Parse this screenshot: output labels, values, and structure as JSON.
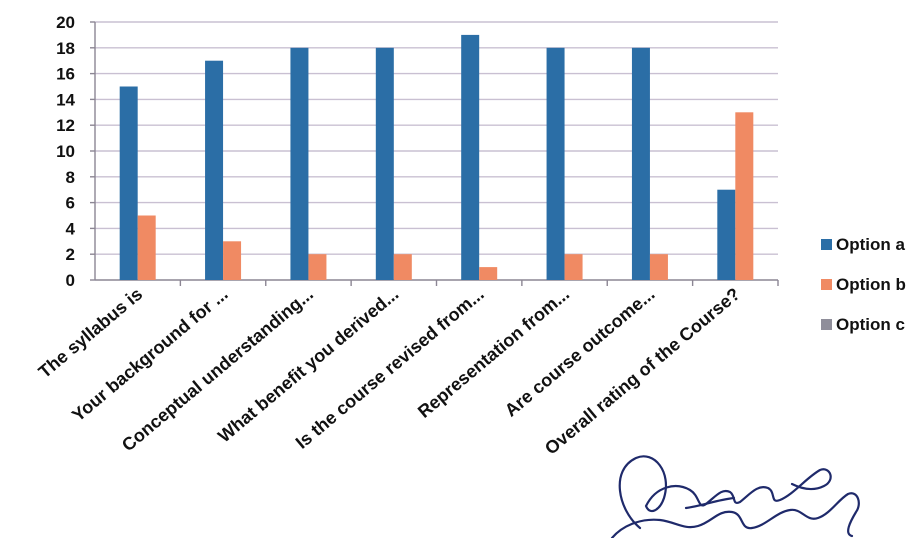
{
  "chart_data": {
    "type": "bar",
    "title": "",
    "xlabel": "",
    "ylabel": "",
    "ylim": [
      0,
      20
    ],
    "yticks": [
      0,
      2,
      4,
      6,
      8,
      10,
      12,
      14,
      16,
      18,
      20
    ],
    "grid": true,
    "legend_position": "right",
    "categories": [
      "The syllabus is",
      "Your background for ...",
      "Conceptual  understanding...",
      "What benefit you derived...",
      "Is the course revised from...",
      "Representation from...",
      "Are course outcome...",
      "Overall rating of the Course?"
    ],
    "series": [
      {
        "name": "Option a",
        "color": "#2b6ea6",
        "values": [
          15,
          17,
          18,
          18,
          19,
          18,
          18,
          7
        ]
      },
      {
        "name": "Option b",
        "color": "#f08a63",
        "values": [
          5,
          3,
          2,
          2,
          1,
          2,
          2,
          13
        ]
      },
      {
        "name": "Option c",
        "color": "#8f8e9a",
        "values": [
          0,
          0,
          0,
          0,
          0,
          0,
          0,
          0
        ]
      }
    ]
  }
}
